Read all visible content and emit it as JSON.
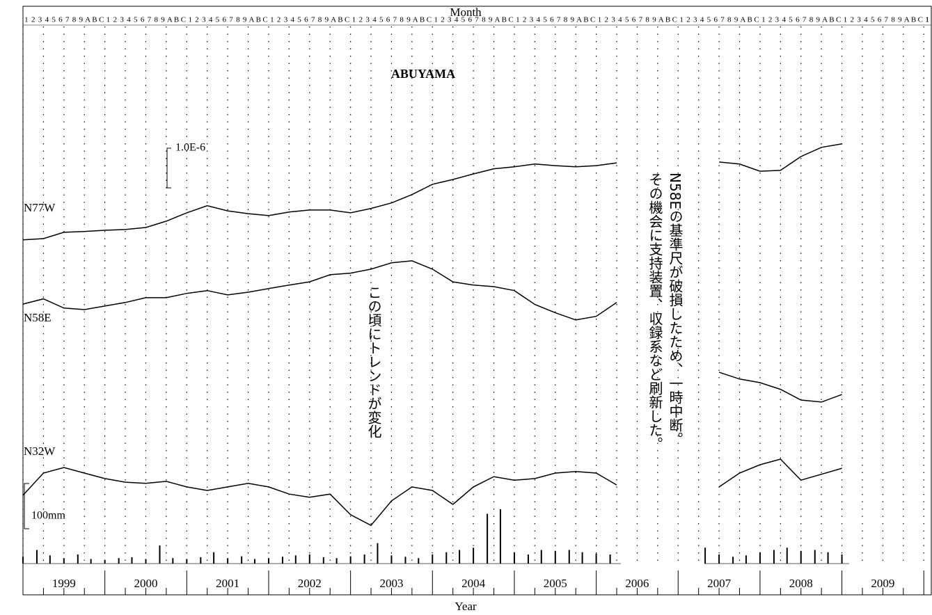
{
  "chart_data": {
    "type": "line",
    "title": "ABUYAMA",
    "top_axis_title": "Month",
    "x_axis_title": "Year",
    "month_labels": [
      "1",
      "2",
      "3",
      "4",
      "5",
      "6",
      "7",
      "8",
      "9",
      "A",
      "B",
      "C"
    ],
    "years": [
      "1999",
      "2000",
      "2001",
      "2002",
      "2003",
      "2004",
      "2005",
      "2006",
      "2007",
      "2008",
      "2009"
    ],
    "xlim": [
      1999,
      2010.1
    ],
    "xticks": [
      1999,
      2000,
      2001,
      2002,
      2003,
      2004,
      2005,
      2006,
      2007,
      2008,
      2009,
      2010
    ],
    "ylim": [
      0,
      14.82
    ],
    "y2lim": [
      -69.2,
      1230.8
    ],
    "grid": true,
    "x": [
      1999,
      1999.25,
      1999.5,
      1999.75,
      2000,
      2000.25,
      2000.5,
      2000.75,
      2001,
      2001.25,
      2001.5,
      2001.75,
      2002,
      2002.25,
      2002.5,
      2002.75,
      2003,
      2003.25,
      2003.5,
      2003.75,
      2004,
      2004.25,
      2004.5,
      2004.75,
      2005,
      2005.25,
      2005.5,
      2005.75,
      2006,
      2006.25,
      2006.5,
      2006.75,
      2007,
      2007.25,
      2007.5,
      2007.75,
      2008,
      2008.25,
      2008.5,
      2008.75,
      2009
    ],
    "series": [
      {
        "name": "N77W",
        "color": "#000000",
        "values": [
          8.95,
          8.98,
          9.14,
          9.16,
          9.19,
          9.21,
          9.26,
          9.42,
          9.63,
          9.81,
          9.68,
          9.61,
          9.56,
          9.65,
          9.7,
          9.7,
          9.63,
          9.74,
          9.88,
          10.09,
          10.35,
          10.47,
          10.61,
          10.74,
          10.79,
          10.86,
          10.82,
          10.79,
          10.82,
          10.89,
          null,
          null,
          null,
          null,
          10.91,
          10.86,
          10.68,
          10.7,
          11.05,
          11.28,
          11.37
        ]
      },
      {
        "name": "N58E",
        "color": "#000000",
        "values": [
          7.33,
          7.46,
          7.23,
          7.19,
          7.28,
          7.37,
          7.49,
          7.49,
          7.6,
          7.67,
          7.56,
          7.63,
          7.72,
          7.81,
          7.89,
          8.07,
          8.11,
          8.21,
          8.37,
          8.42,
          8.21,
          7.89,
          7.81,
          7.77,
          7.67,
          7.32,
          7.11,
          6.93,
          7.02,
          7.37,
          null,
          null,
          null,
          null,
          5.61,
          5.44,
          5.35,
          5.18,
          4.91,
          4.86,
          5.05
        ]
      },
      {
        "name": "N32W",
        "color": "#000000",
        "values": [
          2.51,
          3.07,
          3.21,
          3.07,
          2.93,
          2.84,
          2.81,
          2.86,
          2.72,
          2.63,
          2.72,
          2.81,
          2.72,
          2.54,
          2.46,
          2.54,
          2.02,
          1.75,
          2.37,
          2.72,
          2.63,
          2.28,
          2.72,
          2.98,
          2.89,
          2.93,
          3.07,
          3.11,
          3.07,
          2.77,
          null,
          null,
          null,
          null,
          2.72,
          3.07,
          3.28,
          3.42,
          2.89,
          3.04,
          3.19
        ]
      }
    ],
    "rain": {
      "axis": "y2",
      "color": "#000000",
      "x": [
        1999,
        1999.17,
        1999.33,
        1999.5,
        1999.67,
        1999.83,
        2000,
        2000.17,
        2000.33,
        2000.5,
        2000.67,
        2000.83,
        2001,
        2001.17,
        2001.33,
        2001.5,
        2001.67,
        2001.83,
        2002,
        2002.17,
        2002.33,
        2002.5,
        2002.67,
        2002.83,
        2003,
        2003.17,
        2003.33,
        2003.5,
        2003.67,
        2003.83,
        2004,
        2004.17,
        2004.33,
        2004.5,
        2004.67,
        2004.83,
        2005,
        2005.17,
        2005.33,
        2005.5,
        2005.67,
        2005.83,
        2006,
        2006.17,
        2007.33,
        2007.5,
        2007.67,
        2007.83,
        2008,
        2008.17,
        2008.33,
        2008.5,
        2008.67,
        2008.83,
        2009
      ],
      "values": [
        15,
        30,
        18,
        12,
        20,
        10,
        8,
        12,
        14,
        10,
        40,
        12,
        10,
        14,
        25,
        12,
        16,
        10,
        12,
        15,
        18,
        20,
        14,
        12,
        16,
        20,
        45,
        18,
        15,
        12,
        20,
        25,
        30,
        35,
        110,
        120,
        25,
        20,
        30,
        28,
        30,
        25,
        22,
        20,
        35,
        20,
        15,
        18,
        25,
        30,
        35,
        28,
        30,
        25,
        20
      ]
    },
    "scale_bar": {
      "value": 1,
      "label": "1.0E-6"
    },
    "rain_scale_bar": {
      "value": 100,
      "label": "100mm"
    },
    "annotations": [
      {
        "text": "この頃にトレンドが変化"
      },
      {
        "text": "N58Eの基準尺が破損したため、一時中断。"
      },
      {
        "text": "その機会に支持装置、収録系など刷新した。"
      }
    ]
  }
}
